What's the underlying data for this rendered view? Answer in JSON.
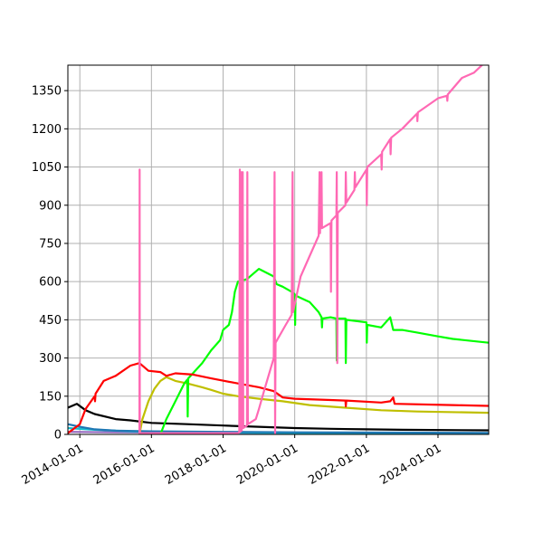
{
  "chart_data": {
    "type": "line",
    "title": "",
    "xlabel": "",
    "ylabel": "",
    "grid": true,
    "xlim": [
      "2013-09-01",
      "2025-06-01"
    ],
    "ylim": [
      0,
      1450
    ],
    "x_ticks": [
      "2014-01-01",
      "2016-01-01",
      "2018-01-01",
      "2020-01-01",
      "2022-01-01",
      "2024-01-01"
    ],
    "y_ticks": [
      0,
      150,
      300,
      450,
      600,
      750,
      900,
      1050,
      1200,
      1350
    ],
    "series": [
      {
        "color": "#ff69b4",
        "points": [
          [
            "2015-09-01",
            5
          ],
          [
            "2015-09-03",
            1040
          ],
          [
            "2015-09-05",
            5
          ],
          [
            "2018-06-01",
            5
          ],
          [
            "2018-06-15",
            8
          ],
          [
            "2018-06-20",
            1040
          ],
          [
            "2018-06-25",
            10
          ],
          [
            "2018-07-05",
            1030
          ],
          [
            "2018-07-10",
            15
          ],
          [
            "2018-07-20",
            1030
          ],
          [
            "2018-07-25",
            25
          ],
          [
            "2018-09-01",
            35
          ],
          [
            "2018-09-05",
            1030
          ],
          [
            "2018-09-10",
            40
          ],
          [
            "2018-12-01",
            60
          ],
          [
            "2019-01-01",
            100
          ],
          [
            "2019-03-01",
            180
          ],
          [
            "2019-06-01",
            300
          ],
          [
            "2019-06-10",
            1030
          ],
          [
            "2019-06-15",
            5
          ],
          [
            "2019-06-20",
            360
          ],
          [
            "2019-10-01",
            430
          ],
          [
            "2019-12-01",
            470
          ],
          [
            "2019-12-10",
            1030
          ],
          [
            "2019-12-15",
            480
          ],
          [
            "2020-03-01",
            620
          ],
          [
            "2020-06-01",
            700
          ],
          [
            "2020-09-01",
            780
          ],
          [
            "2020-09-10",
            1030
          ],
          [
            "2020-09-15",
            790
          ],
          [
            "2020-10-01",
            1030
          ],
          [
            "2020-10-05",
            810
          ],
          [
            "2021-01-01",
            830
          ],
          [
            "2021-01-05",
            560
          ],
          [
            "2021-01-10",
            840
          ],
          [
            "2021-03-01",
            860
          ],
          [
            "2021-03-05",
            1030
          ],
          [
            "2021-03-10",
            280
          ],
          [
            "2021-03-15",
            870
          ],
          [
            "2021-06-01",
            900
          ],
          [
            "2021-06-05",
            1030
          ],
          [
            "2021-06-10",
            910
          ],
          [
            "2021-09-01",
            960
          ],
          [
            "2021-09-05",
            1030
          ],
          [
            "2021-09-10",
            970
          ],
          [
            "2022-01-01",
            1040
          ],
          [
            "2022-01-05",
            900
          ],
          [
            "2022-01-10",
            1050
          ],
          [
            "2022-06-01",
            1100
          ],
          [
            "2022-06-05",
            1040
          ],
          [
            "2022-06-10",
            1110
          ],
          [
            "2022-09-01",
            1160
          ],
          [
            "2022-09-05",
            1100
          ],
          [
            "2022-09-10",
            1165
          ],
          [
            "2023-01-01",
            1200
          ],
          [
            "2023-06-01",
            1260
          ],
          [
            "2023-06-05",
            1230
          ],
          [
            "2023-06-10",
            1265
          ],
          [
            "2024-01-01",
            1320
          ],
          [
            "2024-04-01",
            1330
          ],
          [
            "2024-04-05",
            1310
          ],
          [
            "2024-04-10",
            1335
          ],
          [
            "2024-09-01",
            1400
          ],
          [
            "2025-01-01",
            1420
          ],
          [
            "2025-06-01",
            1475
          ]
        ]
      },
      {
        "color": "#ff0000",
        "points": [
          [
            "2013-09-01",
            5
          ],
          [
            "2014-01-01",
            40
          ],
          [
            "2014-03-01",
            100
          ],
          [
            "2014-06-01",
            150
          ],
          [
            "2014-06-05",
            130
          ],
          [
            "2014-06-10",
            160
          ],
          [
            "2014-09-01",
            210
          ],
          [
            "2015-01-01",
            230
          ],
          [
            "2015-06-01",
            270
          ],
          [
            "2015-09-01",
            280
          ],
          [
            "2015-12-01",
            250
          ],
          [
            "2016-04-01",
            245
          ],
          [
            "2016-06-01",
            230
          ],
          [
            "2016-09-01",
            240
          ],
          [
            "2017-03-01",
            235
          ],
          [
            "2017-09-01",
            220
          ],
          [
            "2018-06-01",
            200
          ],
          [
            "2019-01-01",
            185
          ],
          [
            "2019-06-01",
            170
          ],
          [
            "2019-09-01",
            145
          ],
          [
            "2020-01-01",
            140
          ],
          [
            "2021-01-01",
            135
          ],
          [
            "2021-06-01",
            133
          ],
          [
            "2021-06-05",
            110
          ],
          [
            "2021-06-10",
            133
          ],
          [
            "2022-06-01",
            125
          ],
          [
            "2022-09-01",
            130
          ],
          [
            "2022-10-01",
            145
          ],
          [
            "2022-10-15",
            120
          ],
          [
            "2024-06-01",
            115
          ],
          [
            "2025-06-01",
            112
          ]
        ]
      },
      {
        "color": "#00ff00",
        "points": [
          [
            "2016-04-01",
            0
          ],
          [
            "2016-06-01",
            60
          ],
          [
            "2016-09-01",
            130
          ],
          [
            "2016-12-01",
            200
          ],
          [
            "2017-01-01",
            215
          ],
          [
            "2017-01-05",
            70
          ],
          [
            "2017-01-10",
            220
          ],
          [
            "2017-06-01",
            280
          ],
          [
            "2017-09-01",
            330
          ],
          [
            "2017-12-01",
            370
          ],
          [
            "2018-01-01",
            410
          ],
          [
            "2018-03-01",
            430
          ],
          [
            "2018-04-01",
            480
          ],
          [
            "2018-05-01",
            560
          ],
          [
            "2018-06-01",
            600
          ],
          [
            "2018-09-01",
            610
          ],
          [
            "2019-01-01",
            650
          ],
          [
            "2019-06-01",
            620
          ],
          [
            "2019-07-01",
            590
          ],
          [
            "2019-09-01",
            580
          ],
          [
            "2019-12-01",
            560
          ],
          [
            "2020-01-01",
            550
          ],
          [
            "2020-01-05",
            430
          ],
          [
            "2020-01-10",
            545
          ],
          [
            "2020-06-01",
            520
          ],
          [
            "2020-09-01",
            480
          ],
          [
            "2020-10-01",
            460
          ],
          [
            "2020-10-05",
            420
          ],
          [
            "2020-10-10",
            455
          ],
          [
            "2021-01-01",
            460
          ],
          [
            "2021-03-01",
            455
          ],
          [
            "2021-03-05",
            290
          ],
          [
            "2021-03-10",
            455
          ],
          [
            "2021-06-01",
            455
          ],
          [
            "2021-06-05",
            280
          ],
          [
            "2021-06-10",
            450
          ],
          [
            "2022-01-01",
            440
          ],
          [
            "2022-01-05",
            360
          ],
          [
            "2022-01-10",
            430
          ],
          [
            "2022-06-01",
            420
          ],
          [
            "2022-09-01",
            460
          ],
          [
            "2022-10-01",
            410
          ],
          [
            "2023-01-01",
            410
          ],
          [
            "2023-06-01",
            400
          ],
          [
            "2024-01-01",
            385
          ],
          [
            "2024-06-01",
            375
          ],
          [
            "2025-06-01",
            360
          ]
        ]
      },
      {
        "color": "#bfbf00",
        "points": [
          [
            "2015-09-01",
            0
          ],
          [
            "2015-10-01",
            60
          ],
          [
            "2015-12-01",
            130
          ],
          [
            "2016-02-01",
            180
          ],
          [
            "2016-04-01",
            210
          ],
          [
            "2016-06-01",
            225
          ],
          [
            "2016-09-01",
            210
          ],
          [
            "2017-01-01",
            200
          ],
          [
            "2017-06-01",
            185
          ],
          [
            "2017-09-01",
            175
          ],
          [
            "2018-01-01",
            160
          ],
          [
            "2018-06-01",
            150
          ],
          [
            "2019-01-01",
            140
          ],
          [
            "2019-09-01",
            130
          ],
          [
            "2020-06-01",
            115
          ],
          [
            "2021-06-01",
            105
          ],
          [
            "2022-06-01",
            95
          ],
          [
            "2023-06-01",
            90
          ],
          [
            "2025-06-01",
            85
          ]
        ]
      },
      {
        "color": "#000000",
        "points": [
          [
            "2013-09-01",
            105
          ],
          [
            "2013-12-01",
            120
          ],
          [
            "2014-03-01",
            95
          ],
          [
            "2014-06-01",
            80
          ],
          [
            "2015-01-01",
            60
          ],
          [
            "2015-06-01",
            55
          ],
          [
            "2016-01-01",
            45
          ],
          [
            "2017-01-01",
            40
          ],
          [
            "2018-01-01",
            35
          ],
          [
            "2019-01-01",
            30
          ],
          [
            "2020-01-01",
            25
          ],
          [
            "2021-01-01",
            22
          ],
          [
            "2022-01-01",
            20
          ],
          [
            "2023-01-01",
            18
          ],
          [
            "2025-06-01",
            16
          ]
        ]
      },
      {
        "color": "#1f77b4",
        "points": [
          [
            "2013-09-01",
            40
          ],
          [
            "2014-01-01",
            30
          ],
          [
            "2014-06-01",
            20
          ],
          [
            "2015-01-01",
            15
          ],
          [
            "2016-01-01",
            12
          ],
          [
            "2018-01-01",
            10
          ],
          [
            "2020-01-01",
            8
          ],
          [
            "2025-06-01",
            6
          ]
        ]
      },
      {
        "color": "#17becf",
        "points": [
          [
            "2013-09-01",
            25
          ],
          [
            "2014-06-01",
            18
          ],
          [
            "2015-06-01",
            12
          ],
          [
            "2017-01-01",
            8
          ],
          [
            "2019-01-01",
            6
          ],
          [
            "2025-06-01",
            4
          ]
        ]
      },
      {
        "color": "#9467bd",
        "points": [
          [
            "2013-09-01",
            10
          ],
          [
            "2015-01-01",
            8
          ],
          [
            "2018-01-01",
            6
          ],
          [
            "2022-01-01",
            5
          ],
          [
            "2025-06-01",
            4
          ]
        ]
      }
    ]
  }
}
